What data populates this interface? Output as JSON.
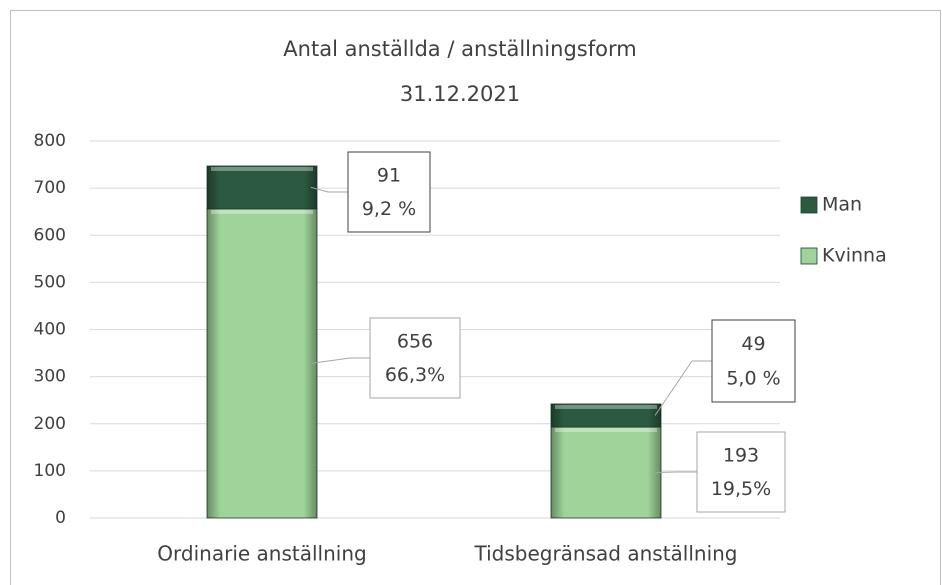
{
  "chart_data": {
    "type": "stacked_bar",
    "title": [
      "Antal anställda / anställningsform",
      "31.12.2021"
    ],
    "categories": [
      "Ordinarie anställning",
      "Tidsbegränsad anställning"
    ],
    "series": [
      {
        "name": "Kvinna",
        "color": "#9fd39a",
        "values": [
          656,
          193
        ],
        "shares": [
          66.3,
          19.5
        ],
        "share_labels": [
          "66,3%",
          "19,5%"
        ]
      },
      {
        "name": "Man",
        "color": "#2c5a40",
        "values": [
          91,
          49
        ],
        "shares": [
          9.2,
          5.0
        ],
        "share_labels": [
          "9,2 %",
          "5,0 %"
        ]
      }
    ],
    "ylim": [
      0,
      800
    ],
    "yticks": [
      0,
      100,
      200,
      300,
      400,
      500,
      600,
      700,
      800
    ],
    "grid": true,
    "legend": "right"
  }
}
